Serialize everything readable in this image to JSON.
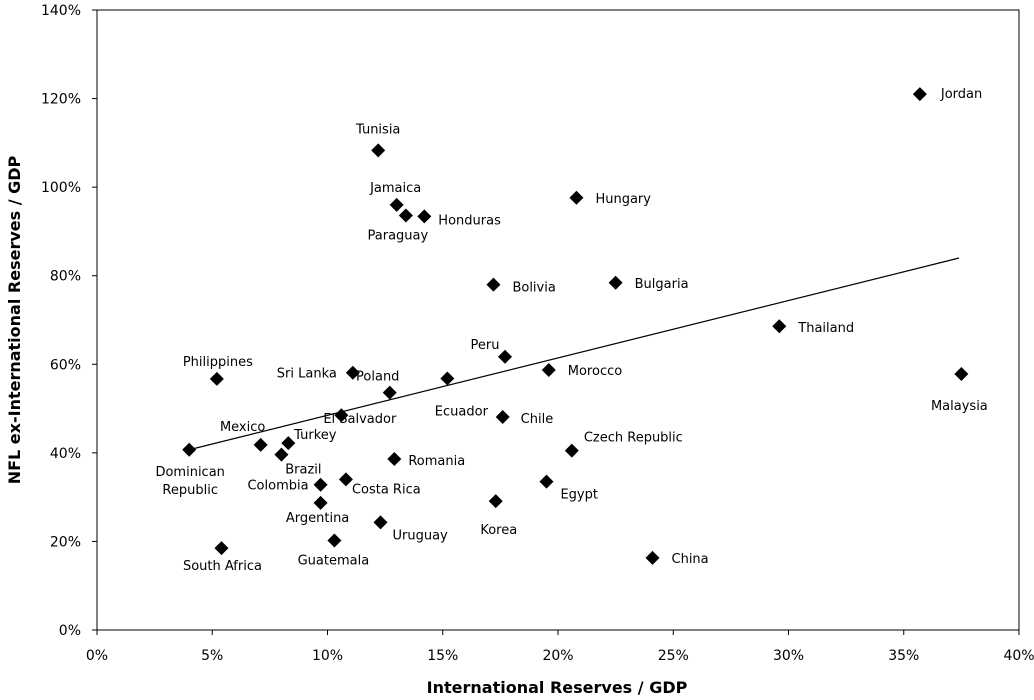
{
  "chart_data": {
    "type": "scatter",
    "title": "",
    "xlabel": "International Reserves / GDP",
    "ylabel": "NFL ex-International Reserves / GDP",
    "xlim": [
      0,
      40
    ],
    "ylim": [
      0,
      140
    ],
    "x_ticks": [
      0,
      5,
      10,
      15,
      20,
      25,
      30,
      35,
      40
    ],
    "y_ticks": [
      0,
      20,
      40,
      60,
      80,
      100,
      120,
      140
    ],
    "x_tick_labels": [
      "0%",
      "5%",
      "10%",
      "15%",
      "20%",
      "25%",
      "30%",
      "35%",
      "40%"
    ],
    "y_tick_labels": [
      "0%",
      "20%",
      "40%",
      "60%",
      "80%",
      "100%",
      "120%",
      "140%"
    ],
    "grid": false,
    "legend": "none",
    "marker": "diamond",
    "marker_color": "#000000",
    "points": [
      {
        "label": "Jordan",
        "x": 35.7,
        "y": 121.0
      },
      {
        "label": "Tunisia",
        "x": 12.2,
        "y": 108.3
      },
      {
        "label": "Jamaica",
        "x": 13.0,
        "y": 96.0
      },
      {
        "label": "Paraguay",
        "x": 13.4,
        "y": 93.6
      },
      {
        "label": "Honduras",
        "x": 14.2,
        "y": 93.4
      },
      {
        "label": "Hungary",
        "x": 20.8,
        "y": 97.6
      },
      {
        "label": "Bolivia",
        "x": 17.2,
        "y": 78.0
      },
      {
        "label": "Bulgaria",
        "x": 22.5,
        "y": 78.4
      },
      {
        "label": "Thailand",
        "x": 29.6,
        "y": 68.6
      },
      {
        "label": "Peru",
        "x": 17.7,
        "y": 61.7
      },
      {
        "label": "Morocco",
        "x": 19.6,
        "y": 58.7
      },
      {
        "label": "Malaysia",
        "x": 37.5,
        "y": 57.8
      },
      {
        "label": "Philippines",
        "x": 5.2,
        "y": 56.7
      },
      {
        "label": "Sri Lanka",
        "x": 11.1,
        "y": 58.1
      },
      {
        "label": "Poland",
        "x": 12.7,
        "y": 53.6
      },
      {
        "label": "Ecuador",
        "x": 15.2,
        "y": 56.8
      },
      {
        "label": "El Salvador",
        "x": 10.6,
        "y": 48.5
      },
      {
        "label": "Chile",
        "x": 17.6,
        "y": 48.1
      },
      {
        "label": "Mexico",
        "x": 7.1,
        "y": 41.8
      },
      {
        "label": "Turkey",
        "x": 8.3,
        "y": 42.2
      },
      {
        "label": "Dominican\nRepublic",
        "x": 4.0,
        "y": 40.7
      },
      {
        "label": "Brazil",
        "x": 8.0,
        "y": 39.6
      },
      {
        "label": "Czech Republic",
        "x": 20.6,
        "y": 40.5
      },
      {
        "label": "Romania",
        "x": 12.9,
        "y": 38.6
      },
      {
        "label": "Colombia",
        "x": 9.7,
        "y": 32.8
      },
      {
        "label": "Costa Rica",
        "x": 10.8,
        "y": 34.0
      },
      {
        "label": "Egypt",
        "x": 19.5,
        "y": 33.5
      },
      {
        "label": "Argentina",
        "x": 9.7,
        "y": 28.7
      },
      {
        "label": "Korea",
        "x": 17.3,
        "y": 29.1
      },
      {
        "label": "Uruguay",
        "x": 12.3,
        "y": 24.3
      },
      {
        "label": "Guatemala",
        "x": 10.3,
        "y": 20.2
      },
      {
        "label": "South Africa",
        "x": 5.4,
        "y": 18.5
      },
      {
        "label": "China",
        "x": 24.1,
        "y": 16.3
      }
    ],
    "trendline": {
      "x": [
        4.0,
        37.4
      ],
      "y": [
        40.7,
        84.0
      ]
    }
  }
}
